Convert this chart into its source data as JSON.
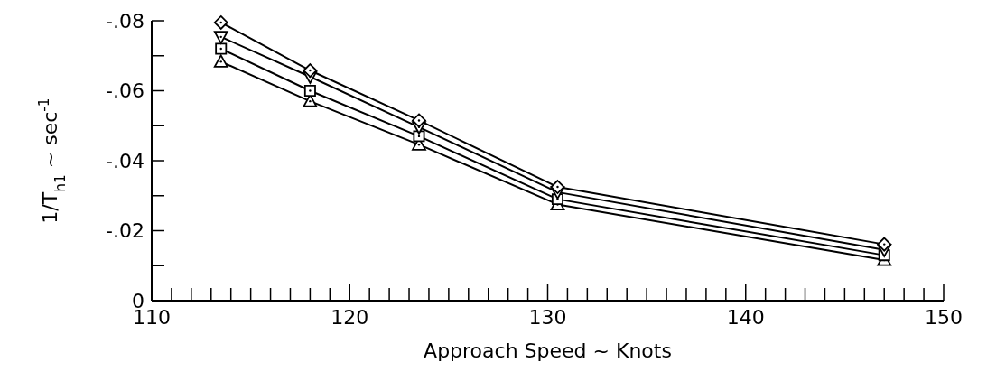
{
  "chart_data": {
    "type": "line",
    "xlabel": "Approach Speed ~ Knots",
    "ylabel": "1/T$_{h1}$ ~ sec$^{-1}$",
    "x": [
      113.5,
      118,
      123.5,
      130.5,
      147
    ],
    "series": [
      {
        "color": "#000000",
        "marker": "diamond",
        "values": [
          -0.0795,
          -0.0658,
          -0.0515,
          -0.0325,
          -0.0161
        ]
      },
      {
        "color": "#000000",
        "marker": "triangle-down",
        "values": [
          -0.0754,
          -0.064,
          -0.0496,
          -0.031,
          -0.0145
        ]
      },
      {
        "color": "#000000",
        "marker": "square",
        "values": [
          -0.072,
          -0.06,
          -0.047,
          -0.029,
          -0.013
        ]
      },
      {
        "color": "#000000",
        "marker": "triangle",
        "values": [
          -0.0683,
          -0.057,
          -0.0446,
          -0.0275,
          -0.0116
        ]
      }
    ],
    "xlim": [
      110,
      150
    ],
    "xticks": [
      110,
      {
        "value": 111,
        "label": null
      },
      {
        "value": 112,
        "label": null
      },
      {
        "value": 113,
        "label": null
      },
      {
        "value": 114,
        "label": null
      },
      {
        "value": 115,
        "label": null
      },
      {
        "value": 116,
        "label": null
      },
      {
        "value": 117,
        "label": null
      },
      {
        "value": 118,
        "label": null
      },
      {
        "value": 119,
        "label": null
      },
      120,
      {
        "value": 121,
        "label": null
      },
      {
        "value": 122,
        "label": null
      },
      {
        "value": 123,
        "label": null
      },
      {
        "value": 124,
        "label": null
      },
      {
        "value": 125,
        "label": null
      },
      {
        "value": 126,
        "label": null
      },
      {
        "value": 127,
        "label": null
      },
      {
        "value": 128,
        "label": null
      },
      {
        "value": 129,
        "label": null
      },
      130,
      {
        "value": 131,
        "label": null
      },
      {
        "value": 132,
        "label": null
      },
      {
        "value": 133,
        "label": null
      },
      {
        "value": 134,
        "label": null
      },
      {
        "value": 135,
        "label": null
      },
      {
        "value": 136,
        "label": null
      },
      {
        "value": 137,
        "label": null
      },
      {
        "value": 138,
        "label": null
      },
      {
        "value": 139,
        "label": null
      },
      140,
      {
        "value": 141,
        "label": null
      },
      {
        "value": 142,
        "label": null
      },
      {
        "value": 143,
        "label": null
      },
      {
        "value": 144,
        "label": null
      },
      {
        "value": 145,
        "label": null
      },
      {
        "value": 146,
        "label": null
      },
      {
        "value": 147,
        "label": null
      },
      {
        "value": 148,
        "label": null
      },
      {
        "value": 149,
        "label": null
      },
      150
    ],
    "ylim": [
      0,
      -0.08
    ],
    "yticks": [
      0,
      {
        "value": -0.01,
        "label": null
      },
      {
        "value": -0.02,
        "label": "-.02"
      },
      {
        "value": -0.03,
        "label": null
      },
      {
        "value": -0.04,
        "label": "-.04"
      },
      {
        "value": -0.05,
        "label": null
      },
      {
        "value": -0.06,
        "label": "-.06"
      },
      {
        "value": -0.07,
        "label": null
      },
      {
        "value": -0.08,
        "label": "-.08"
      }
    ],
    "line_style": "solid"
  }
}
